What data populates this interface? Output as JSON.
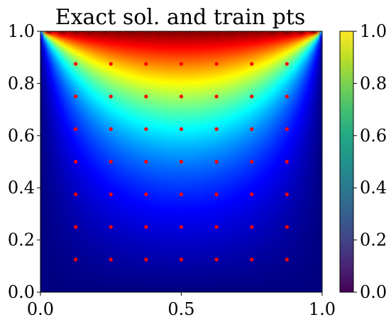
{
  "chart_data": [
    {
      "type": "heatmap",
      "title": "Exact sol. and train pts",
      "xlabel": "",
      "ylabel": "",
      "xlim": [
        0.0,
        1.0
      ],
      "ylim": [
        0.0,
        1.0
      ],
      "x_ticks": [
        "0.0",
        "0.5",
        "1.0"
      ],
      "y_ticks": [
        "0.0",
        "0.2",
        "0.4",
        "0.6",
        "0.8",
        "1.0"
      ],
      "colormap": "jet",
      "value_range": [
        0.0,
        1.0
      ],
      "field_description_values": {
        "peak": {
          "x": 0.5,
          "y": 1.0,
          "value": 1.0
        },
        "boundary_value": 0.0
      },
      "grid": false
    },
    {
      "type": "scatter",
      "series": [
        {
          "marker_color": "#ff0000",
          "x": [
            0.125,
            0.25,
            0.375,
            0.5,
            0.625,
            0.75,
            0.875
          ],
          "y": [
            0.125,
            0.25,
            0.375,
            0.5,
            0.625,
            0.75,
            0.875
          ],
          "layout": "grid (every x paired with every y)"
        }
      ]
    },
    {
      "type": "colorbar",
      "colormap": "viridis",
      "range": [
        0.0,
        1.0
      ],
      "ticks": [
        "0.0",
        "0.2",
        "0.4",
        "0.6",
        "0.8",
        "1.0"
      ]
    }
  ]
}
